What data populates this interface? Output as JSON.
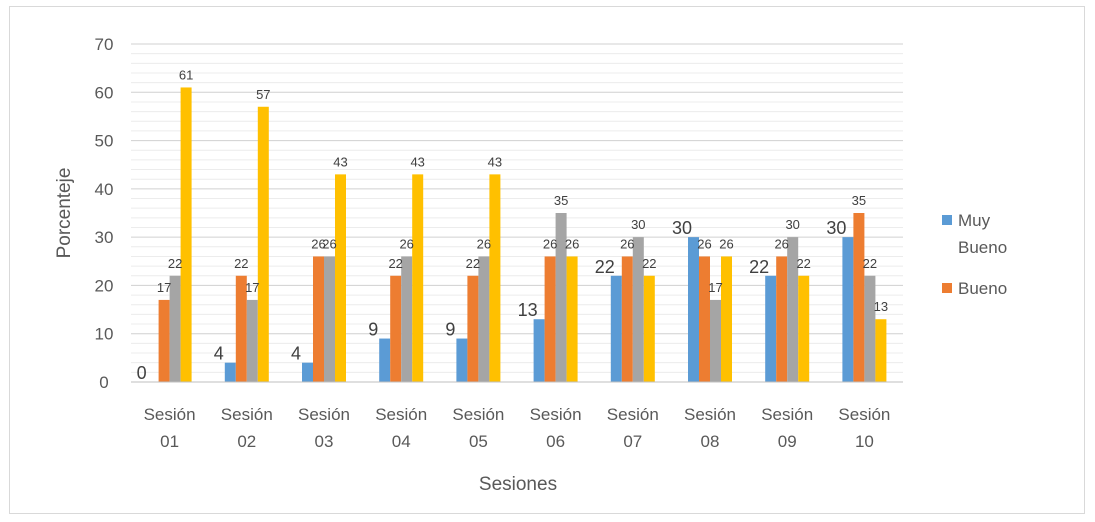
{
  "chart_data": {
    "type": "bar",
    "title": "",
    "xlabel": "Sesiones",
    "ylabel": "Porcenteje",
    "ylim": [
      0,
      70
    ],
    "yticks": [
      0,
      10,
      20,
      30,
      40,
      50,
      60,
      70
    ],
    "grid": true,
    "legend_position": "right",
    "categories": [
      [
        "Sesión",
        "01"
      ],
      [
        "Sesión",
        "02"
      ],
      [
        "Sesión",
        "03"
      ],
      [
        "Sesión",
        "04"
      ],
      [
        "Sesión",
        "05"
      ],
      [
        "Sesión",
        "06"
      ],
      [
        "Sesión",
        "07"
      ],
      [
        "Sesión",
        "08"
      ],
      [
        "Sesión",
        "09"
      ],
      [
        "Sesión",
        "10"
      ]
    ],
    "series": [
      {
        "name": "Muy Bueno",
        "name_lines": [
          "Muy",
          "Bueno"
        ],
        "color": "#5b9bd5",
        "label_style": "large",
        "in_legend": true,
        "values": [
          0,
          4,
          4,
          9,
          9,
          13,
          22,
          30,
          22,
          30
        ]
      },
      {
        "name": "Bueno",
        "name_lines": [
          "Bueno"
        ],
        "color": "#ed7d31",
        "label_style": "small",
        "in_legend": true,
        "values": [
          17,
          22,
          26,
          22,
          22,
          26,
          26,
          26,
          26,
          35
        ]
      },
      {
        "color": "#a5a5a5",
        "label_style": "small",
        "in_legend": false,
        "values": [
          22,
          17,
          26,
          26,
          26,
          35,
          30,
          17,
          30,
          22
        ]
      },
      {
        "color": "#ffc000",
        "label_style": "small",
        "in_legend": false,
        "values": [
          61,
          57,
          43,
          43,
          43,
          26,
          22,
          26,
          22,
          13
        ]
      }
    ]
  }
}
